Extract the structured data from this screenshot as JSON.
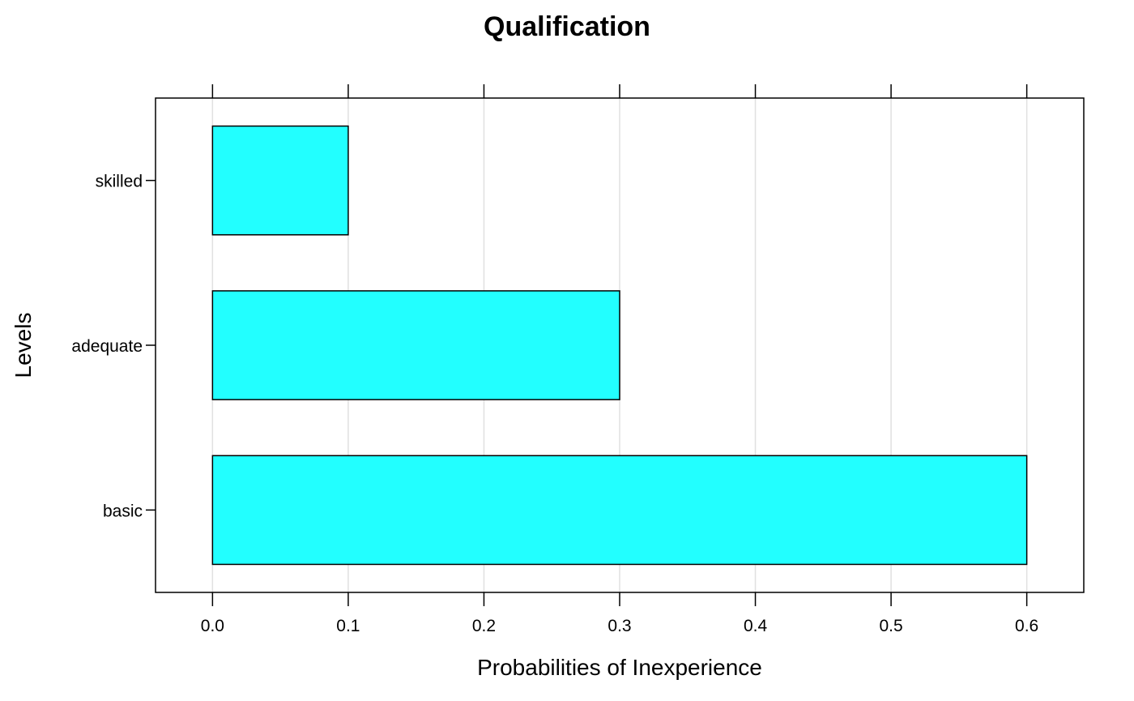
{
  "chart_data": {
    "type": "bar",
    "orientation": "horizontal",
    "title": "Qualification",
    "xlabel": "Probabilities of Inexperience",
    "ylabel": "Levels",
    "categories": [
      "basic",
      "adequate",
      "skilled"
    ],
    "values": [
      0.6,
      0.3,
      0.1
    ],
    "xlim": [
      -0.042,
      0.642
    ],
    "xticks": [
      "0.0",
      "0.1",
      "0.2",
      "0.3",
      "0.4",
      "0.5",
      "0.6"
    ],
    "grid": "vertical",
    "bar_color": "#22ffff",
    "bar_edge_color": "#000000",
    "grid_color": "#e0e0e0"
  }
}
